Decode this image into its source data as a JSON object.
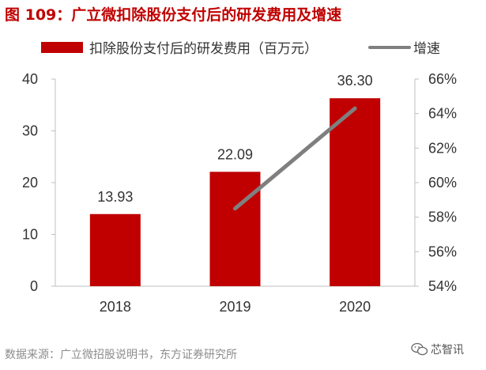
{
  "title": "图 109：广立微扣除股份支付后的研发费用及增速",
  "source": "数据来源：广立微招股说明书，东方证券研究所",
  "watermark": {
    "text": "芯智讯",
    "icon": "wechat-icon"
  },
  "colors": {
    "bar": "#c00000",
    "line": "#7f7f7f",
    "title": "#c00000",
    "text": "#333333"
  },
  "chart_data": {
    "type": "bar",
    "categories": [
      "2018",
      "2019",
      "2020"
    ],
    "series": [
      {
        "name": "扣除股份支付后的研发费用（百万元）",
        "type": "bar",
        "axis": "left",
        "values": [
          13.93,
          22.09,
          36.3
        ],
        "labels": [
          "13.93",
          "22.09",
          "36.30"
        ]
      },
      {
        "name": "增速",
        "type": "line",
        "axis": "right",
        "values": [
          null,
          0.585,
          0.643
        ]
      }
    ],
    "left_axis": {
      "min": 0,
      "max": 40,
      "ticks": [
        0,
        10,
        20,
        30,
        40
      ]
    },
    "right_axis": {
      "min": 0.54,
      "max": 0.66,
      "ticks": [
        0.54,
        0.56,
        0.58,
        0.6,
        0.62,
        0.64,
        0.66
      ],
      "tick_labels": [
        "54%",
        "56%",
        "58%",
        "60%",
        "62%",
        "64%",
        "66%"
      ]
    },
    "legend": "top",
    "grid": false
  }
}
